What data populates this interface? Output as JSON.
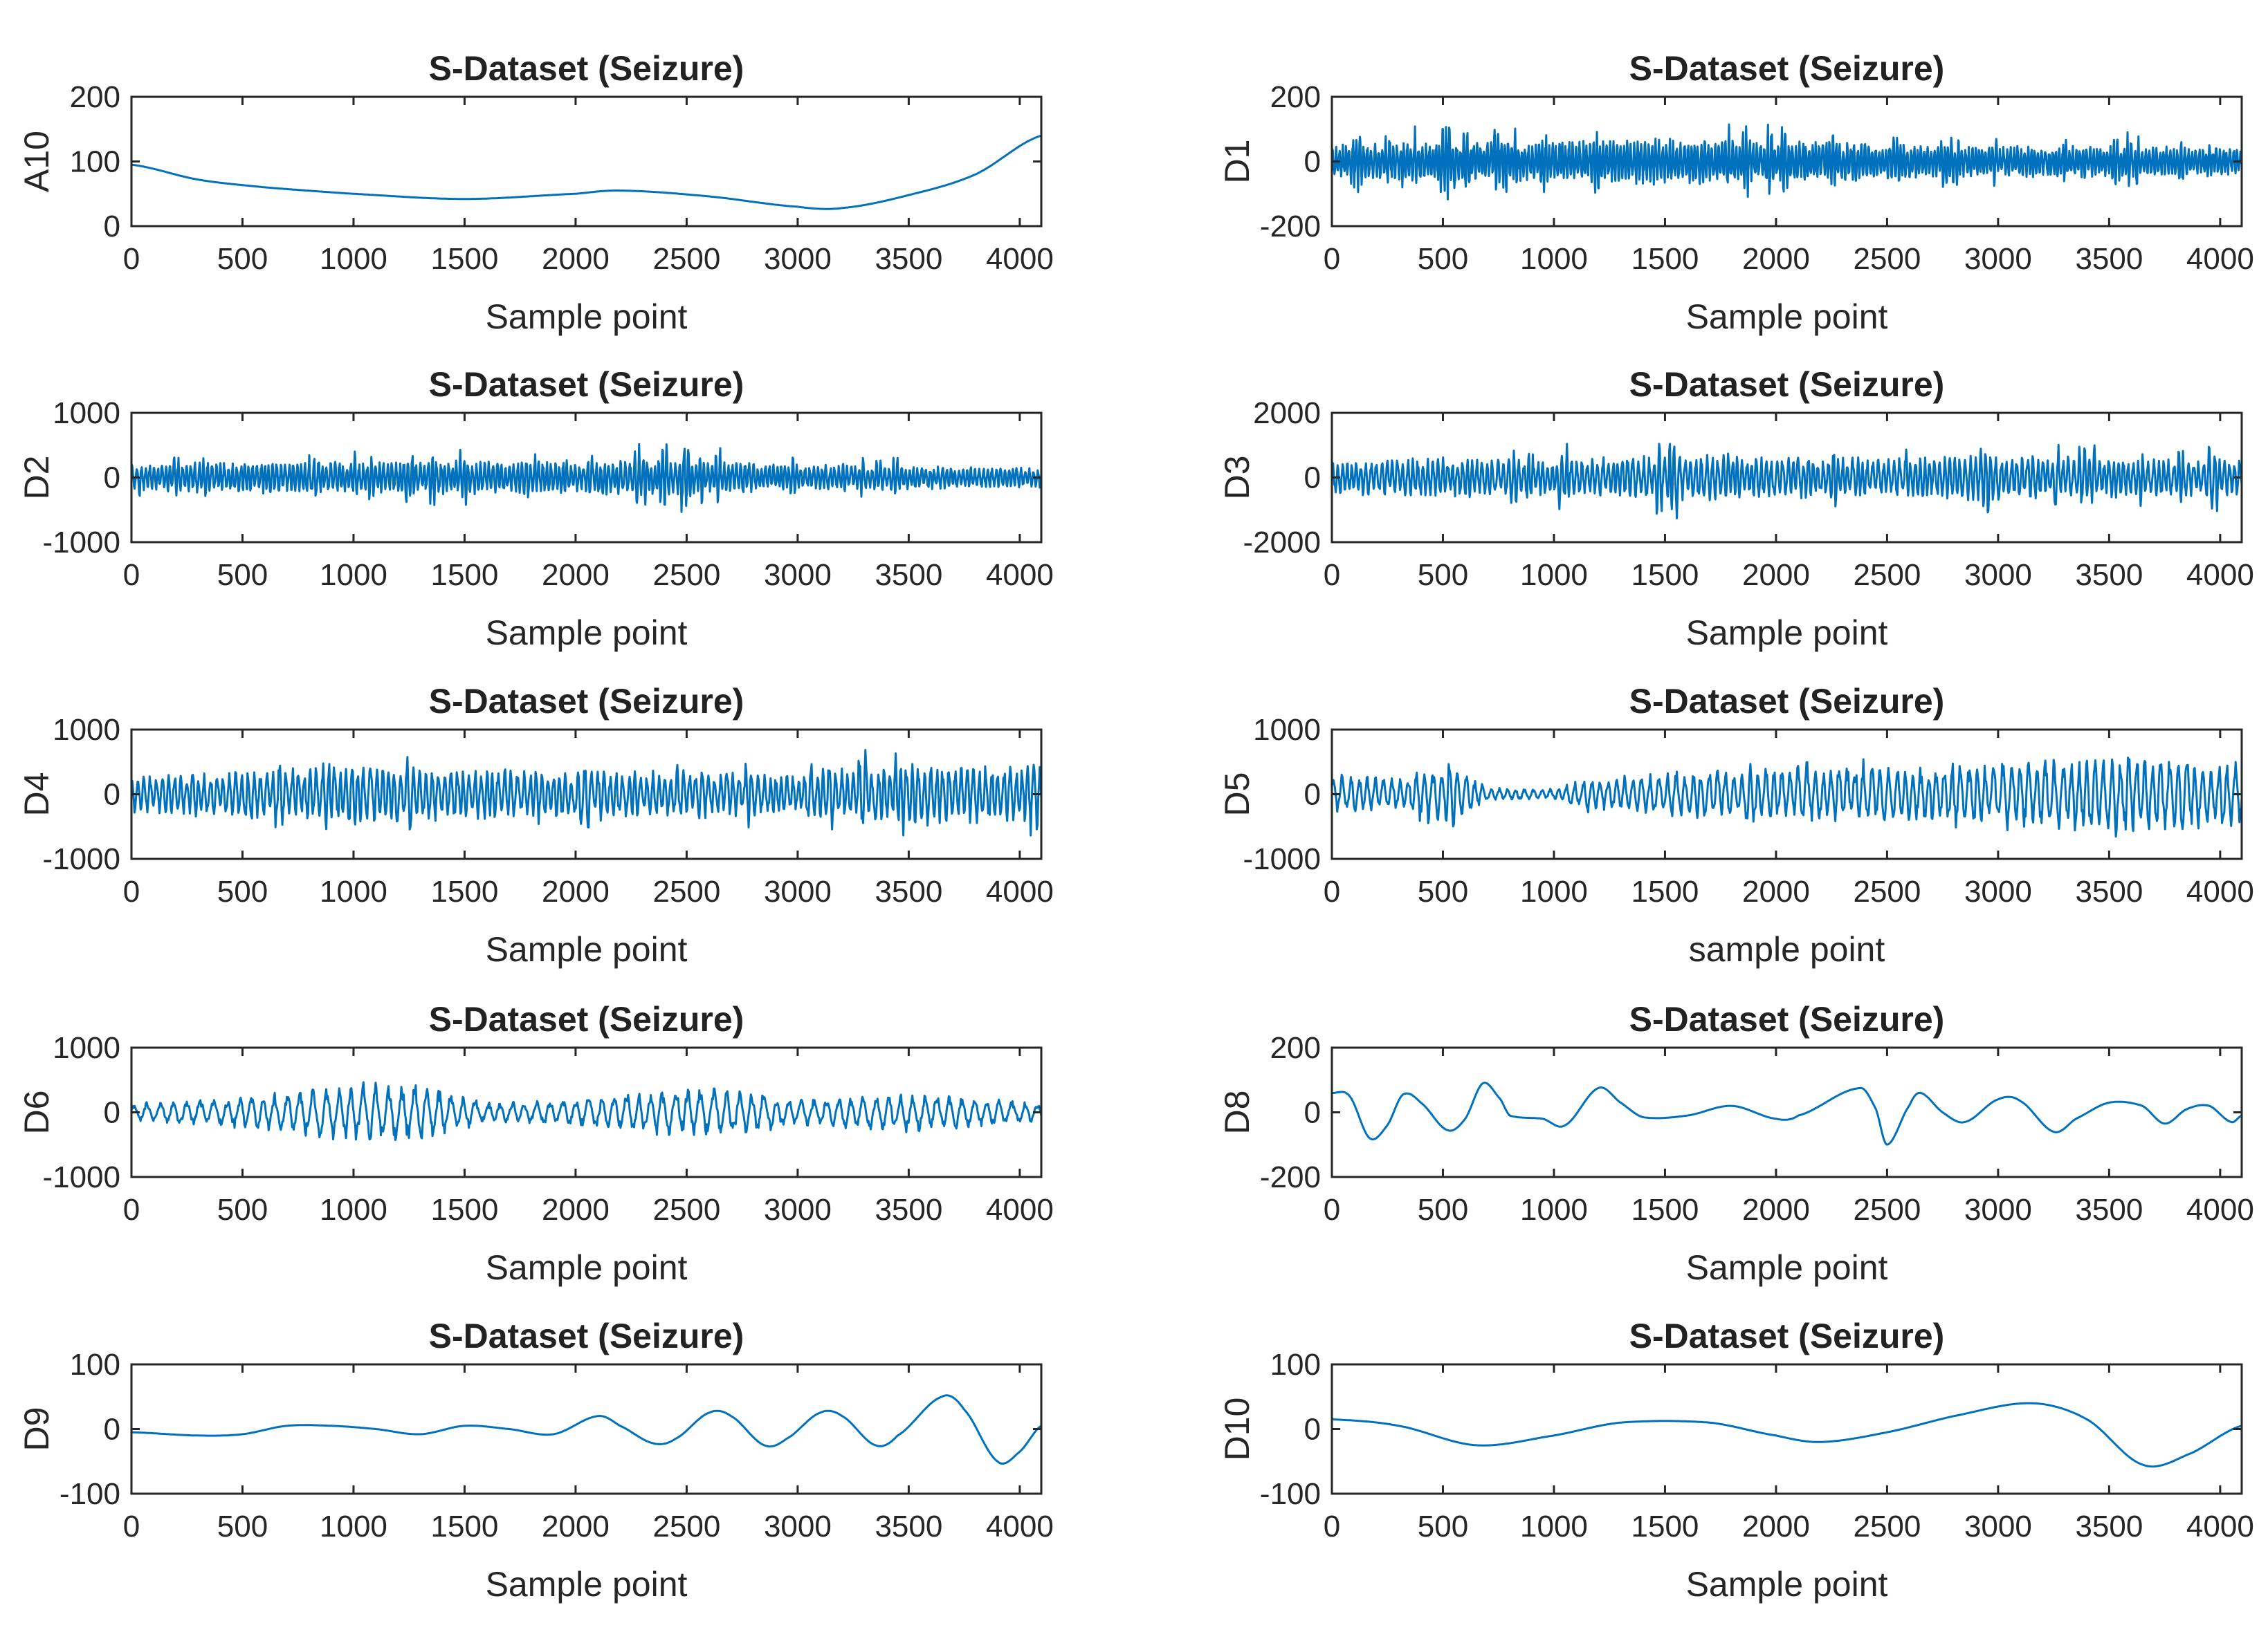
{
  "chart_data": [
    {
      "type": "line",
      "title": "S-Dataset (Seizure)",
      "ylabel": "A10",
      "xlabel": "Sample point",
      "xlim": [
        0,
        4097
      ],
      "xticks": [
        0,
        500,
        1000,
        1500,
        2000,
        2500,
        3000,
        3500,
        4000
      ],
      "ylim": [
        0,
        200
      ],
      "yticks": [
        0,
        100,
        200
      ],
      "series": [
        {
          "name": "A10",
          "kind": "smooth",
          "points": [
            [
              0,
              95
            ],
            [
              300,
              72
            ],
            [
              600,
              60
            ],
            [
              1000,
              50
            ],
            [
              1500,
              42
            ],
            [
              2000,
              50
            ],
            [
              2200,
              55
            ],
            [
              2600,
              46
            ],
            [
              3000,
              30
            ],
            [
              3200,
              28
            ],
            [
              3500,
              48
            ],
            [
              3800,
              80
            ],
            [
              4097,
              140
            ]
          ]
        }
      ]
    },
    {
      "type": "line",
      "title": "S-Dataset (Seizure)",
      "ylabel": "D1",
      "xlabel": "Sample point",
      "xlim": [
        0,
        4097
      ],
      "xticks": [
        0,
        500,
        1000,
        1500,
        2000,
        2500,
        3000,
        3500,
        4000
      ],
      "ylim": [
        -200,
        200
      ],
      "yticks": [
        -200,
        0,
        200
      ],
      "series": [
        {
          "name": "D1",
          "kind": "oscillation",
          "amplitude_envelope": [
            [
              0,
              50
            ],
            [
              500,
              65
            ],
            [
              1000,
              60
            ],
            [
              1500,
              70
            ],
            [
              2000,
              65
            ],
            [
              2500,
              55
            ],
            [
              3000,
              45
            ],
            [
              3500,
              50
            ],
            [
              4097,
              40
            ]
          ],
          "approx_cycles": 260,
          "burst_probability": 0.05,
          "burst_gain": 2.0,
          "seed": 11
        }
      ]
    },
    {
      "type": "line",
      "title": "S-Dataset (Seizure)",
      "ylabel": "D2",
      "xlabel": "Sample point",
      "xlim": [
        0,
        4097
      ],
      "xticks": [
        0,
        500,
        1000,
        1500,
        2000,
        2500,
        3000,
        3500,
        4000
      ],
      "ylim": [
        -1000,
        1000
      ],
      "yticks": [
        -1000,
        0,
        1000
      ],
      "series": [
        {
          "name": "D2",
          "kind": "oscillation",
          "amplitude_envelope": [
            [
              0,
              200
            ],
            [
              500,
              250
            ],
            [
              1000,
              240
            ],
            [
              1500,
              260
            ],
            [
              2000,
              230
            ],
            [
              2400,
              300
            ],
            [
              3000,
              200
            ],
            [
              3500,
              180
            ],
            [
              4097,
              150
            ]
          ],
          "approx_cycles": 220,
          "burst_probability": 0.05,
          "burst_gain": 1.9,
          "seed": 22
        }
      ]
    },
    {
      "type": "line",
      "title": "S-Dataset (Seizure)",
      "ylabel": "D3",
      "xlabel": "Sample point",
      "xlim": [
        0,
        4097
      ],
      "xticks": [
        0,
        500,
        1000,
        1500,
        2000,
        2500,
        3000,
        3500,
        4000
      ],
      "ylim": [
        -2000,
        2000
      ],
      "yticks": [
        -2000,
        0,
        2000
      ],
      "series": [
        {
          "name": "D3",
          "kind": "oscillation",
          "amplitude_envelope": [
            [
              0,
              500
            ],
            [
              500,
              600
            ],
            [
              1000,
              550
            ],
            [
              1500,
              700
            ],
            [
              2000,
              650
            ],
            [
              2500,
              600
            ],
            [
              3000,
              700
            ],
            [
              3500,
              600
            ],
            [
              4097,
              550
            ]
          ],
          "approx_cycles": 180,
          "burst_probability": 0.06,
          "burst_gain": 1.9,
          "seed": 33
        }
      ]
    },
    {
      "type": "line",
      "title": "S-Dataset (Seizure)",
      "ylabel": "D4",
      "xlabel": "Sample point",
      "xlim": [
        0,
        4097
      ],
      "xticks": [
        0,
        500,
        1000,
        1500,
        2000,
        2500,
        3000,
        3500,
        4000
      ],
      "ylim": [
        -1000,
        1000
      ],
      "yticks": [
        -1000,
        0,
        1000
      ],
      "series": [
        {
          "name": "D4",
          "kind": "oscillation",
          "amplitude_envelope": [
            [
              0,
              300
            ],
            [
              500,
              350
            ],
            [
              1000,
              450
            ],
            [
              1500,
              400
            ],
            [
              2000,
              350
            ],
            [
              2500,
              380
            ],
            [
              3000,
              300
            ],
            [
              3300,
              450
            ],
            [
              3700,
              480
            ],
            [
              4097,
              420
            ]
          ],
          "approx_cycles": 150,
          "burst_probability": 0.06,
          "burst_gain": 1.6,
          "seed": 44
        }
      ]
    },
    {
      "type": "line",
      "title": "S-Dataset (Seizure)",
      "ylabel": "D5",
      "xlabel": "sample point",
      "xlim": [
        0,
        4097
      ],
      "xticks": [
        0,
        500,
        1000,
        1500,
        2000,
        2500,
        3000,
        3500,
        4000
      ],
      "ylim": [
        -1000,
        1000
      ],
      "yticks": [
        -1000,
        0,
        1000
      ],
      "series": [
        {
          "name": "D5",
          "kind": "oscillation",
          "amplitude_envelope": [
            [
              0,
              300
            ],
            [
              300,
              250
            ],
            [
              550,
              450
            ],
            [
              700,
              100
            ],
            [
              1000,
              80
            ],
            [
              1100,
              200
            ],
            [
              1500,
              350
            ],
            [
              2000,
              400
            ],
            [
              2500,
              400
            ],
            [
              3000,
              450
            ],
            [
              3500,
              650
            ],
            [
              4097,
              500
            ]
          ],
          "approx_cycles": 110,
          "burst_probability": 0.05,
          "burst_gain": 1.4,
          "seed": 55
        }
      ]
    },
    {
      "type": "line",
      "title": "S-Dataset (Seizure)",
      "ylabel": "D6",
      "xlabel": "Sample point",
      "xlim": [
        0,
        4097
      ],
      "xticks": [
        0,
        500,
        1000,
        1500,
        2000,
        2500,
        3000,
        3500,
        4000
      ],
      "ylim": [
        -1000,
        1000
      ],
      "yticks": [
        -1000,
        0,
        1000
      ],
      "series": [
        {
          "name": "D6",
          "kind": "oscillation",
          "amplitude_envelope": [
            [
              0,
              150
            ],
            [
              500,
              250
            ],
            [
              1000,
              450
            ],
            [
              1300,
              450
            ],
            [
              1600,
              150
            ],
            [
              2000,
              200
            ],
            [
              2300,
              350
            ],
            [
              2700,
              380
            ],
            [
              3000,
              200
            ],
            [
              3500,
              300
            ],
            [
              4097,
              150
            ]
          ],
          "approx_cycles": 72,
          "burst_probability": 0.0,
          "burst_gain": 1.0,
          "seed": 66
        }
      ]
    },
    {
      "type": "line",
      "title": "S-Dataset (Seizure)",
      "ylabel": "D8",
      "xlabel": "Sample point",
      "xlim": [
        0,
        4097
      ],
      "xticks": [
        0,
        500,
        1000,
        1500,
        2000,
        2500,
        3000,
        3500,
        4000
      ],
      "ylim": [
        -200,
        200
      ],
      "yticks": [
        -200,
        0,
        200
      ],
      "series": [
        {
          "name": "D8",
          "kind": "smooth",
          "points": [
            [
              0,
              60
            ],
            [
              80,
              50
            ],
            [
              170,
              -80
            ],
            [
              250,
              -40
            ],
            [
              320,
              55
            ],
            [
              400,
              30
            ],
            [
              520,
              -55
            ],
            [
              600,
              -20
            ],
            [
              680,
              90
            ],
            [
              760,
              40
            ],
            [
              800,
              -10
            ],
            [
              950,
              -20
            ],
            [
              1050,
              -40
            ],
            [
              1200,
              75
            ],
            [
              1300,
              30
            ],
            [
              1400,
              -15
            ],
            [
              1600,
              -10
            ],
            [
              1800,
              20
            ],
            [
              2000,
              -20
            ],
            [
              2100,
              -10
            ],
            [
              2380,
              75
            ],
            [
              2450,
              10
            ],
            [
              2500,
              -100
            ],
            [
              2600,
              20
            ],
            [
              2650,
              60
            ],
            [
              2750,
              0
            ],
            [
              2850,
              -30
            ],
            [
              3000,
              40
            ],
            [
              3100,
              35
            ],
            [
              3250,
              -60
            ],
            [
              3350,
              -20
            ],
            [
              3500,
              30
            ],
            [
              3650,
              20
            ],
            [
              3750,
              -35
            ],
            [
              3850,
              10
            ],
            [
              3950,
              20
            ],
            [
              4050,
              -30
            ],
            [
              4097,
              -10
            ]
          ]
        }
      ]
    },
    {
      "type": "line",
      "title": "S-Dataset (Seizure)",
      "ylabel": "D9",
      "xlabel": "Sample point",
      "xlim": [
        0,
        4097
      ],
      "xticks": [
        0,
        500,
        1000,
        1500,
        2000,
        2500,
        3000,
        3500,
        4000
      ],
      "ylim": [
        -100,
        100
      ],
      "yticks": [
        -100,
        0,
        100
      ],
      "series": [
        {
          "name": "D9",
          "kind": "smooth",
          "points": [
            [
              0,
              -5
            ],
            [
              300,
              -10
            ],
            [
              500,
              -8
            ],
            [
              700,
              5
            ],
            [
              900,
              5
            ],
            [
              1100,
              0
            ],
            [
              1300,
              -8
            ],
            [
              1500,
              5
            ],
            [
              1700,
              0
            ],
            [
              1900,
              -8
            ],
            [
              2100,
              20
            ],
            [
              2200,
              5
            ],
            [
              2350,
              -22
            ],
            [
              2450,
              -15
            ],
            [
              2600,
              25
            ],
            [
              2700,
              20
            ],
            [
              2850,
              -25
            ],
            [
              2950,
              -15
            ],
            [
              3100,
              25
            ],
            [
              3200,
              20
            ],
            [
              3350,
              -25
            ],
            [
              3450,
              -10
            ],
            [
              3650,
              50
            ],
            [
              3750,
              30
            ],
            [
              3900,
              -50
            ],
            [
              4000,
              -35
            ],
            [
              4097,
              5
            ]
          ]
        }
      ]
    },
    {
      "type": "line",
      "title": "S-Dataset (Seizure)",
      "ylabel": "D10",
      "xlabel": "Sample point",
      "xlim": [
        0,
        4097
      ],
      "xticks": [
        0,
        500,
        1000,
        1500,
        2000,
        2500,
        3000,
        3500,
        4000
      ],
      "ylim": [
        -100,
        100
      ],
      "yticks": [
        -100,
        0,
        100
      ],
      "series": [
        {
          "name": "D10",
          "kind": "smooth",
          "points": [
            [
              0,
              15
            ],
            [
              300,
              5
            ],
            [
              650,
              -25
            ],
            [
              1000,
              -10
            ],
            [
              1300,
              10
            ],
            [
              1700,
              10
            ],
            [
              2000,
              -10
            ],
            [
              2200,
              -20
            ],
            [
              2500,
              -5
            ],
            [
              2800,
              20
            ],
            [
              3150,
              40
            ],
            [
              3400,
              15
            ],
            [
              3650,
              -55
            ],
            [
              3850,
              -40
            ],
            [
              4097,
              5
            ]
          ]
        }
      ]
    }
  ],
  "style": {
    "line_color": "#0072BD",
    "axis_color": "#262626",
    "background": "#ffffff"
  }
}
